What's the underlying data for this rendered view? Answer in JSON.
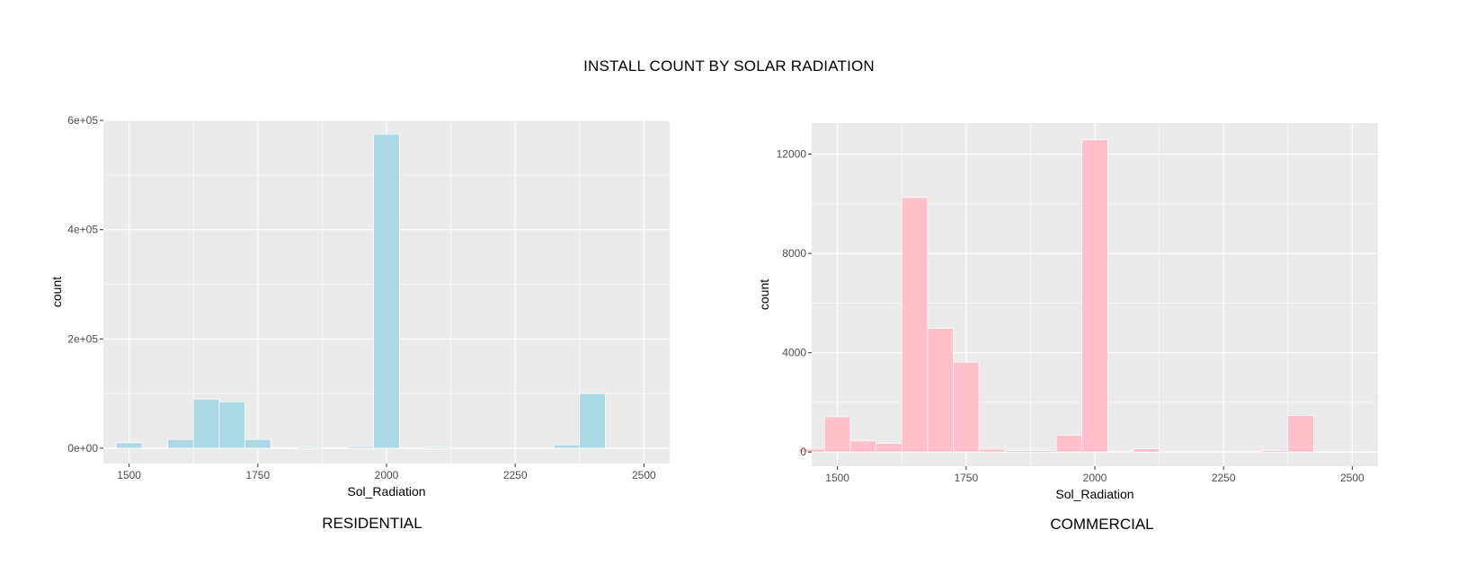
{
  "title": "INSTALL COUNT BY SOLAR RADIATION",
  "chart_data": [
    {
      "type": "bar",
      "title": "RESIDENTIAL",
      "xlabel": "Sol_Radiation",
      "ylabel": "count",
      "bin_width": 50,
      "bins": [
        1500,
        1550,
        1600,
        1650,
        1700,
        1750,
        1800,
        1850,
        1900,
        1950,
        2000,
        2050,
        2100,
        2150,
        2200,
        2250,
        2300,
        2350,
        2400,
        2450
      ],
      "values": [
        10000,
        500,
        16000,
        90000,
        85000,
        16000,
        1000,
        2000,
        1000,
        3000,
        575000,
        500,
        2000,
        500,
        500,
        500,
        500,
        6000,
        100000,
        0
      ],
      "xlim": [
        1450,
        2550
      ],
      "ylim": [
        -28000,
        600000
      ],
      "x_ticks": [
        1500,
        1750,
        2000,
        2250,
        2500
      ],
      "x_tick_labels": [
        "1500",
        "1750",
        "2000",
        "2250",
        "2500"
      ],
      "y_ticks": [
        0,
        200000,
        400000,
        600000
      ],
      "y_tick_labels": [
        "0e+00",
        "2e+05",
        "4e+05",
        "6e+05"
      ],
      "color": "#add8e6",
      "grid": true,
      "legend": "none"
    },
    {
      "type": "bar",
      "title": "COMMERCIAL",
      "xlabel": "Sol_Radiation",
      "ylabel": "count",
      "bin_width": 50,
      "bins": [
        1450,
        1500,
        1550,
        1600,
        1650,
        1700,
        1750,
        1800,
        1850,
        1900,
        1950,
        2000,
        2050,
        2100,
        2150,
        2200,
        2250,
        2300,
        2350,
        2400,
        2450
      ],
      "values": [
        120,
        1420,
        450,
        350,
        10250,
        4980,
        3620,
        120,
        60,
        60,
        680,
        12580,
        20,
        130,
        20,
        20,
        20,
        20,
        70,
        1470,
        0
      ],
      "xlim": [
        1450,
        2550
      ],
      "ylim": [
        -570,
        13250
      ],
      "x_ticks": [
        1500,
        1750,
        2000,
        2250,
        2500
      ],
      "x_tick_labels": [
        "1500",
        "1750",
        "2000",
        "2250",
        "2500"
      ],
      "y_ticks": [
        0,
        4000,
        8000,
        12000
      ],
      "y_tick_labels": [
        "0",
        "4000",
        "8000",
        "12000"
      ],
      "color": "#ffc0cb",
      "grid": true,
      "legend": "none"
    }
  ]
}
